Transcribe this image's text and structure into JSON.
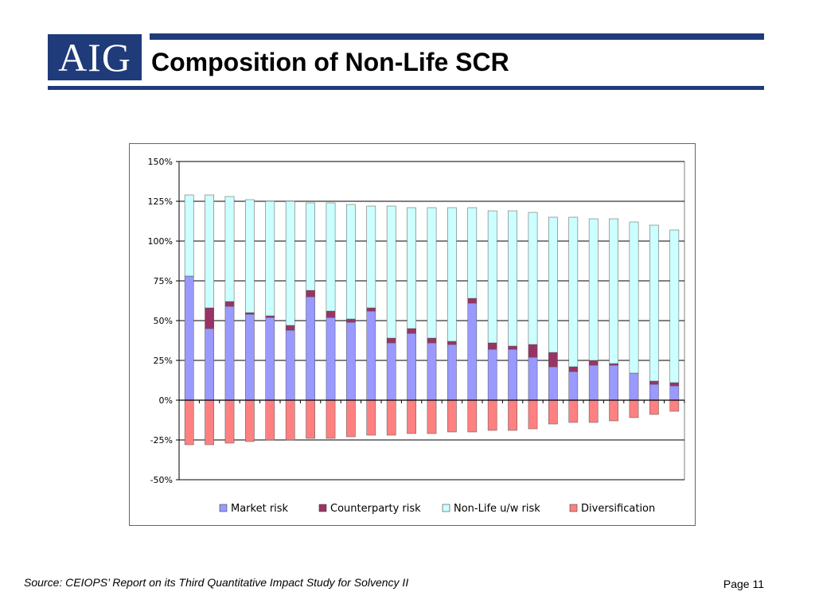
{
  "header": {
    "logo_text": "AIG",
    "title": "Composition of Non-Life SCR",
    "brand_color": "#1f3b7a"
  },
  "footer": {
    "source": "Source: CEIOPS’ Report on its Third Quantitative Impact Study for Solvency II",
    "page_label": "Page",
    "page_number": "11"
  },
  "chart_data": {
    "type": "bar",
    "stacked": true,
    "title": "",
    "xlabel": "",
    "ylabel": "",
    "ylim": [
      -0.5,
      1.5
    ],
    "yticks": [
      -0.5,
      -0.25,
      0,
      0.25,
      0.5,
      0.75,
      1.0,
      1.25,
      1.5
    ],
    "ytick_labels": [
      "-50%",
      "-25%",
      "0%",
      "25%",
      "50%",
      "75%",
      "100%",
      "125%",
      "150%"
    ],
    "grid": true,
    "legend": "bottom",
    "series": [
      {
        "name": "Market risk",
        "color": "#9999ff",
        "values": [
          0.78,
          0.45,
          0.59,
          0.54,
          0.52,
          0.44,
          0.65,
          0.52,
          0.49,
          0.56,
          0.36,
          0.42,
          0.36,
          0.35,
          0.61,
          0.32,
          0.32,
          0.27,
          0.21,
          0.18,
          0.22,
          0.22,
          0.17,
          0.1,
          0.09
        ]
      },
      {
        "name": "Counterparty risk",
        "color": "#993366",
        "values": [
          0.0,
          0.13,
          0.03,
          0.01,
          0.01,
          0.03,
          0.04,
          0.04,
          0.02,
          0.02,
          0.03,
          0.03,
          0.03,
          0.02,
          0.03,
          0.04,
          0.02,
          0.08,
          0.09,
          0.03,
          0.03,
          0.01,
          0.0,
          0.02,
          0.02
        ]
      },
      {
        "name": "Non-Life u/w risk",
        "color": "#ccffff",
        "values": [
          0.51,
          0.71,
          0.66,
          0.71,
          0.72,
          0.78,
          0.55,
          0.68,
          0.72,
          0.64,
          0.83,
          0.76,
          0.82,
          0.84,
          0.57,
          0.83,
          0.85,
          0.83,
          0.85,
          0.94,
          0.89,
          0.91,
          0.95,
          0.98,
          0.96
        ]
      },
      {
        "name": "Diversification",
        "color": "#ff8080",
        "values": [
          -0.28,
          -0.28,
          -0.27,
          -0.26,
          -0.25,
          -0.25,
          -0.24,
          -0.24,
          -0.23,
          -0.22,
          -0.22,
          -0.21,
          -0.21,
          -0.2,
          -0.2,
          -0.19,
          -0.19,
          -0.18,
          -0.15,
          -0.14,
          -0.14,
          -0.13,
          -0.11,
          -0.09,
          -0.07
        ]
      }
    ]
  }
}
